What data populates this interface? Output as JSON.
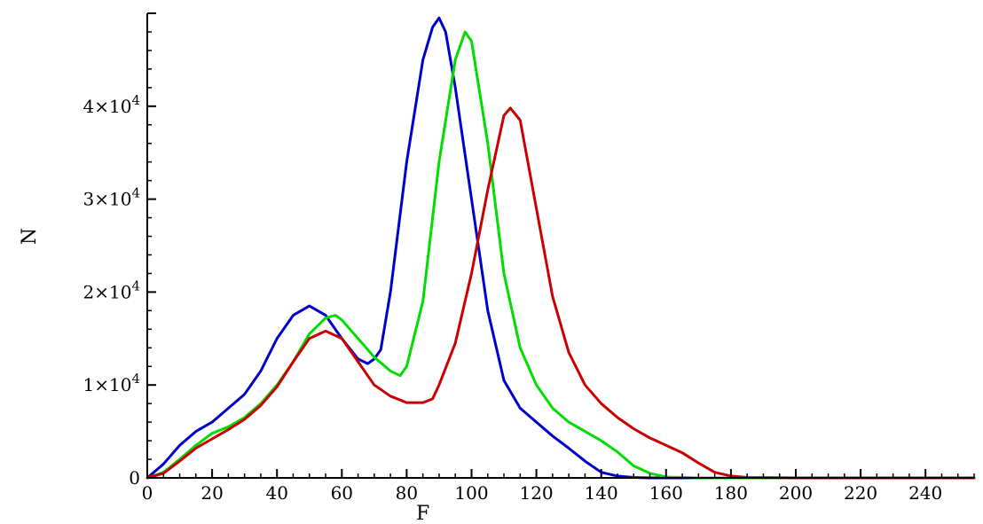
{
  "chart_data": {
    "type": "line",
    "title": "",
    "xlabel": "F",
    "ylabel": "N",
    "xlim": [
      0,
      255
    ],
    "ylim": [
      0,
      50000
    ],
    "grid": false,
    "x_ticks": [
      0,
      20,
      40,
      60,
      80,
      100,
      120,
      140,
      160,
      180,
      200,
      220,
      240
    ],
    "y_ticks": [
      {
        "value": 0,
        "label": "0",
        "exp": ""
      },
      {
        "value": 10000,
        "label": "1×10",
        "exp": "4"
      },
      {
        "value": 20000,
        "label": "2×10",
        "exp": "4"
      },
      {
        "value": 30000,
        "label": "3×10",
        "exp": "4"
      },
      {
        "value": 40000,
        "label": "4×10",
        "exp": "4"
      }
    ],
    "series": [
      {
        "color": "#0000cc",
        "x": [
          0,
          5,
          10,
          15,
          20,
          25,
          30,
          35,
          40,
          45,
          50,
          55,
          60,
          65,
          68,
          70,
          72,
          75,
          80,
          85,
          88,
          90,
          92,
          95,
          100,
          105,
          110,
          115,
          120,
          125,
          130,
          135,
          140,
          145,
          150,
          155,
          160,
          200,
          255
        ],
        "values": [
          0,
          1500,
          3500,
          5000,
          6000,
          7500,
          9000,
          11500,
          15000,
          17500,
          18500,
          17500,
          15000,
          12800,
          12300,
          12800,
          13800,
          20000,
          34000,
          45000,
          48500,
          49500,
          48000,
          42000,
          30000,
          18000,
          10500,
          7500,
          6000,
          4500,
          3200,
          1800,
          600,
          200,
          50,
          0,
          0,
          0,
          0
        ]
      },
      {
        "color": "#00dd00",
        "x": [
          0,
          5,
          10,
          15,
          20,
          25,
          30,
          35,
          40,
          45,
          50,
          55,
          58,
          60,
          65,
          70,
          75,
          78,
          80,
          85,
          90,
          95,
          98,
          100,
          105,
          110,
          115,
          120,
          125,
          130,
          135,
          140,
          145,
          150,
          155,
          160,
          170,
          200,
          255
        ],
        "values": [
          0,
          600,
          2000,
          3500,
          4800,
          5500,
          6500,
          8000,
          10000,
          12500,
          15500,
          17200,
          17500,
          17000,
          15000,
          13000,
          11500,
          11000,
          12000,
          19000,
          34000,
          45000,
          48000,
          47000,
          36000,
          22000,
          14000,
          10000,
          7500,
          6000,
          5000,
          4000,
          2800,
          1300,
          500,
          100,
          0,
          0,
          0
        ]
      },
      {
        "color": "#cc0000",
        "x": [
          0,
          5,
          10,
          15,
          20,
          25,
          30,
          35,
          40,
          45,
          50,
          55,
          60,
          65,
          70,
          75,
          80,
          85,
          88,
          90,
          95,
          100,
          105,
          110,
          112,
          115,
          120,
          125,
          130,
          135,
          140,
          145,
          150,
          155,
          160,
          165,
          170,
          175,
          180,
          185,
          200,
          255
        ],
        "values": [
          0,
          500,
          1800,
          3200,
          4200,
          5200,
          6300,
          7800,
          9800,
          12500,
          15000,
          15800,
          15000,
          12500,
          10000,
          8800,
          8100,
          8100,
          8500,
          10000,
          14500,
          22000,
          31000,
          39000,
          39800,
          38500,
          29000,
          19500,
          13500,
          10000,
          8000,
          6500,
          5300,
          4300,
          3500,
          2700,
          1600,
          600,
          200,
          50,
          0,
          0
        ]
      }
    ]
  }
}
